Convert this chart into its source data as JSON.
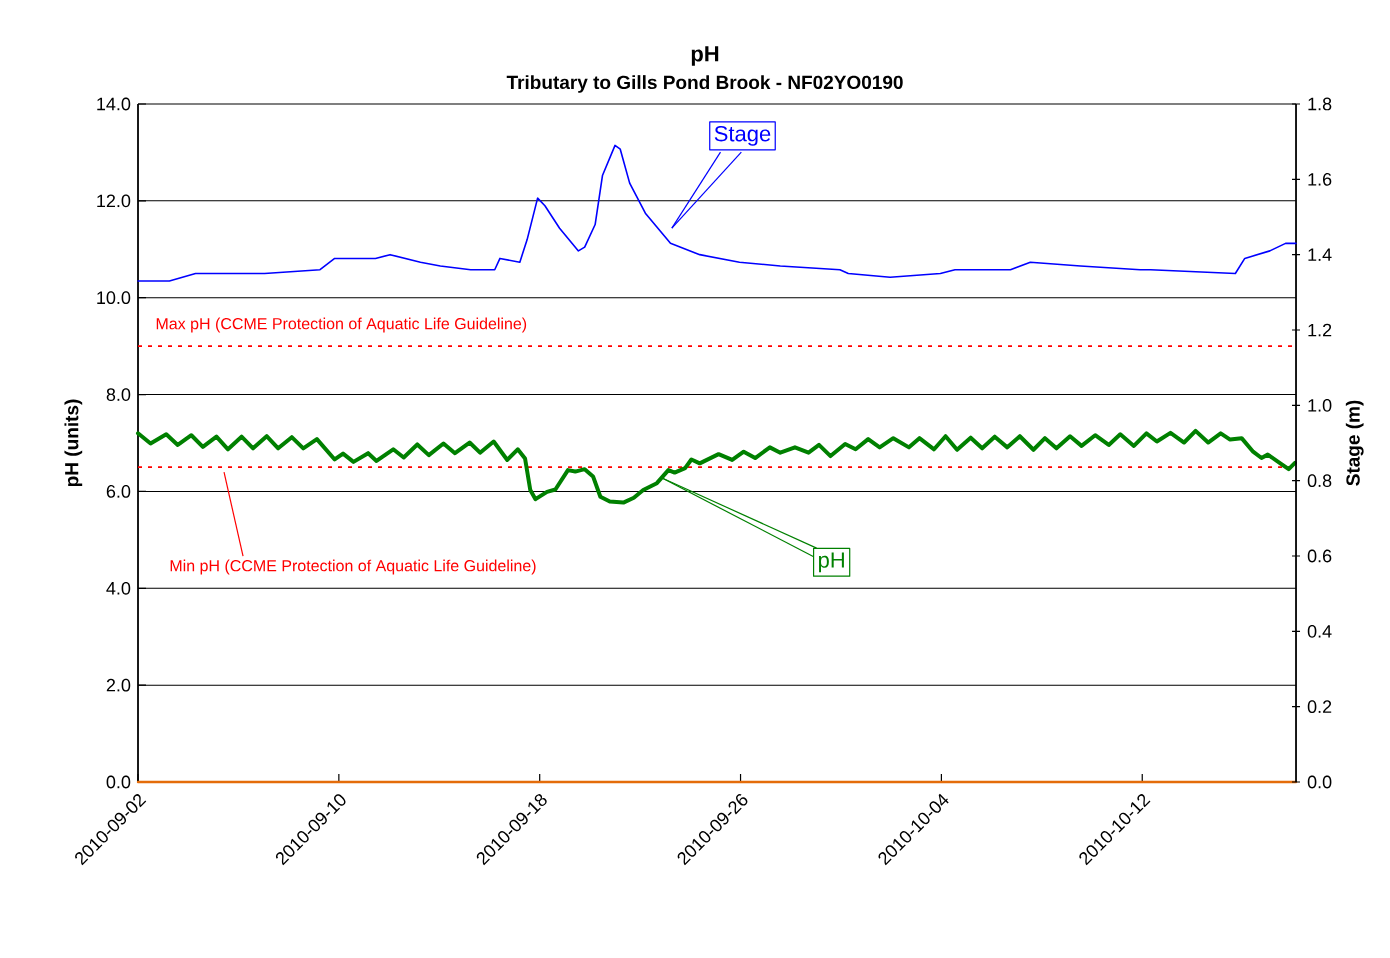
{
  "chart_data": {
    "type": "line",
    "title": "pH",
    "subtitle": "Tributary to Gills Pond Brook - NF02YO0190",
    "ylabel": "pH (units)",
    "y2label": "Stage (m)",
    "grid": "y",
    "xlim": [
      "2010-09-02T00:00",
      "2010-10-18T03:00"
    ],
    "xticks": [
      "2010-09-02",
      "2010-09-10",
      "2010-09-18",
      "2010-09-26",
      "2010-10-04",
      "2010-10-12"
    ],
    "ylim": [
      0,
      14
    ],
    "yticks": [
      {
        "value": 0,
        "label": "0.0"
      },
      {
        "value": 2,
        "label": "2.0"
      },
      {
        "value": 4,
        "label": "4.0"
      },
      {
        "value": 6,
        "label": "6.0"
      },
      {
        "value": 8,
        "label": "8.0"
      },
      {
        "value": 10,
        "label": "10.0"
      },
      {
        "value": 12,
        "label": "12.0"
      },
      {
        "value": 14,
        "label": "14.0"
      }
    ],
    "y2lim": [
      0,
      1.8
    ],
    "y2ticks": [
      {
        "value": 0,
        "label": "0.0"
      },
      {
        "value": 0.2,
        "label": "0.2"
      },
      {
        "value": 0.4,
        "label": "0.4"
      },
      {
        "value": 0.6,
        "label": "0.6"
      },
      {
        "value": 0.8,
        "label": "0.8"
      },
      {
        "value": 1.0,
        "label": "1.0"
      },
      {
        "value": 1.2,
        "label": "1.2"
      },
      {
        "value": 1.4,
        "label": "1.4"
      },
      {
        "value": 1.6,
        "label": "1.6"
      },
      {
        "value": 1.8,
        "label": "1.8"
      }
    ],
    "ref_lines": [
      {
        "axis": "y",
        "value": 9.0,
        "label": "Max pH (CCME Protection of Aquatic Life Guideline)",
        "color": "#ff0000",
        "line_style": "dotted"
      },
      {
        "axis": "y",
        "value": 6.5,
        "label": "Min pH (CCME Protection of Aquatic Life Guideline)",
        "color": "#ff0000",
        "line_style": "dotted"
      }
    ],
    "series": [
      {
        "name": "pH",
        "color": "#008000",
        "axis": "y",
        "x": [
          "2010-09-02T00:00",
          "2010-09-02T12:00",
          "2010-09-03T03:00",
          "2010-09-03T14:00",
          "2010-09-04T03:00",
          "2010-09-04T14:00",
          "2010-09-05T03:00",
          "2010-09-05T14:00",
          "2010-09-06T03:00",
          "2010-09-06T14:00",
          "2010-09-07T03:00",
          "2010-09-07T14:00",
          "2010-09-08T03:00",
          "2010-09-08T14:00",
          "2010-09-09T03:00",
          "2010-09-09T20:00",
          "2010-09-10T04:00",
          "2010-09-10T14:00",
          "2010-09-11T04:00",
          "2010-09-11T12:00",
          "2010-09-12T04:00",
          "2010-09-12T14:00",
          "2010-09-13T03:00",
          "2010-09-13T14:00",
          "2010-09-14T04:00",
          "2010-09-14T15:00",
          "2010-09-15T05:00",
          "2010-09-15T15:00",
          "2010-09-16T04:00",
          "2010-09-16T17:00",
          "2010-09-17T03:00",
          "2010-09-17T10:00",
          "2010-09-17T15:00",
          "2010-09-17T20:00",
          "2010-09-18T07:00",
          "2010-09-18T15:00",
          "2010-09-19T03:00",
          "2010-09-19T10:00",
          "2010-09-19T19:00",
          "2010-09-20T03:00",
          "2010-09-20T10:00",
          "2010-09-20T19:00",
          "2010-09-21T08:00",
          "2010-09-21T18:00",
          "2010-09-22T03:00",
          "2010-09-22T16:00",
          "2010-09-23T03:00",
          "2010-09-23T09:00",
          "2010-09-23T19:00",
          "2010-09-24T01:00",
          "2010-09-24T09:00",
          "2010-09-25T03:00",
          "2010-09-25T16:00",
          "2010-09-26T03:00",
          "2010-09-26T14:00",
          "2010-09-27T04:00",
          "2010-09-27T14:00",
          "2010-09-28T04:00",
          "2010-09-28T17:00",
          "2010-09-29T03:00",
          "2010-09-29T14:00",
          "2010-09-30T04:00",
          "2010-09-30T14:00",
          "2010-10-01T02:00",
          "2010-10-01T13:00",
          "2010-10-02T02:00",
          "2010-10-02T17:00",
          "2010-10-03T03:00",
          "2010-10-03T17:00",
          "2010-10-04T04:00",
          "2010-10-04T15:00",
          "2010-10-05T04:00",
          "2010-10-05T15:00",
          "2010-10-06T03:00",
          "2010-10-06T15:00",
          "2010-10-07T03:00",
          "2010-10-07T16:00",
          "2010-10-08T03:00",
          "2010-10-08T14:00",
          "2010-10-09T03:00",
          "2010-10-09T14:00",
          "2010-10-10T03:00",
          "2010-10-10T16:00",
          "2010-10-11T03:00",
          "2010-10-11T16:00",
          "2010-10-12T04:00",
          "2010-10-12T14:00",
          "2010-10-13T03:00",
          "2010-10-13T16:00",
          "2010-10-14T03:00",
          "2010-10-14T15:00",
          "2010-10-15T03:00",
          "2010-10-15T12:00",
          "2010-10-15T23:00",
          "2010-10-16T10:00",
          "2010-10-16T18:00",
          "2010-10-17T00:00",
          "2010-10-17T12:00",
          "2010-10-17T20:00",
          "2010-10-18T02:00"
        ],
        "values": [
          7.2,
          6.99,
          7.18,
          6.96,
          7.16,
          6.92,
          7.13,
          6.87,
          7.13,
          6.89,
          7.14,
          6.89,
          7.12,
          6.89,
          7.08,
          6.66,
          6.78,
          6.61,
          6.79,
          6.63,
          6.87,
          6.7,
          6.97,
          6.75,
          6.99,
          6.79,
          7.01,
          6.8,
          7.03,
          6.65,
          6.87,
          6.68,
          6.03,
          5.84,
          5.99,
          6.04,
          6.44,
          6.41,
          6.46,
          6.31,
          5.89,
          5.79,
          5.77,
          5.87,
          6.03,
          6.17,
          6.44,
          6.39,
          6.48,
          6.66,
          6.58,
          6.77,
          6.65,
          6.82,
          6.69,
          6.91,
          6.8,
          6.91,
          6.8,
          6.96,
          6.73,
          6.98,
          6.87,
          7.08,
          6.91,
          7.1,
          6.91,
          7.1,
          6.87,
          7.14,
          6.86,
          7.11,
          6.89,
          7.13,
          6.91,
          7.14,
          6.86,
          7.1,
          6.89,
          7.14,
          6.94,
          7.16,
          6.96,
          7.18,
          6.94,
          7.2,
          7.03,
          7.21,
          7.01,
          7.25,
          7.01,
          7.2,
          7.07,
          7.1,
          6.82,
          6.69,
          6.76,
          6.58,
          6.46,
          6.59
        ]
      },
      {
        "name": "Stage",
        "color": "#0000ff",
        "axis": "y2",
        "x": [
          "2010-09-02T00:00",
          "2010-09-03T06:00",
          "2010-09-04T07:00",
          "2010-09-06T01:00",
          "2010-09-07T01:00",
          "2010-09-09T06:00",
          "2010-09-09T20:00",
          "2010-09-11T11:00",
          "2010-09-12T01:00",
          "2010-09-13T06:00",
          "2010-09-14T01:00",
          "2010-09-15T06:00",
          "2010-09-16T05:00",
          "2010-09-16T10:00",
          "2010-09-17T05:00",
          "2010-09-17T12:00",
          "2010-09-17T22:00",
          "2010-09-18T05:00",
          "2010-09-18T19:00",
          "2010-09-19T13:00",
          "2010-09-19T19:00",
          "2010-09-20T05:00",
          "2010-09-20T12:00",
          "2010-09-21T00:00",
          "2010-09-21T05:00",
          "2010-09-21T14:00",
          "2010-09-22T05:00",
          "2010-09-23T05:00",
          "2010-09-24T09:00",
          "2010-09-25T23:00",
          "2010-09-27T14:00",
          "2010-09-29T23:00",
          "2010-09-30T07:00",
          "2010-10-01T23:00",
          "2010-10-03T23:00",
          "2010-10-04T13:00",
          "2010-10-06T18:00",
          "2010-10-07T13:00",
          "2010-10-09T13:00",
          "2010-10-11T22:00",
          "2010-10-12T08:00",
          "2010-10-15T17:00",
          "2010-10-16T02:00",
          "2010-10-17T02:00",
          "2010-10-17T17:00",
          "2010-10-18T03:00"
        ],
        "values": [
          1.33,
          1.33,
          1.35,
          1.35,
          1.35,
          1.36,
          1.39,
          1.39,
          1.4,
          1.38,
          1.37,
          1.36,
          1.36,
          1.39,
          1.38,
          1.44,
          1.55,
          1.53,
          1.47,
          1.41,
          1.42,
          1.48,
          1.61,
          1.69,
          1.68,
          1.59,
          1.51,
          1.43,
          1.4,
          1.38,
          1.37,
          1.36,
          1.35,
          1.34,
          1.35,
          1.36,
          1.36,
          1.38,
          1.37,
          1.36,
          1.36,
          1.35,
          1.39,
          1.41,
          1.43,
          1.43
        ]
      },
      {
        "color": "#e46c0a",
        "axis": "y",
        "x": [
          "2010-09-02T00:00",
          "2010-10-18T03:00"
        ],
        "values": [
          0,
          0
        ]
      }
    ]
  }
}
